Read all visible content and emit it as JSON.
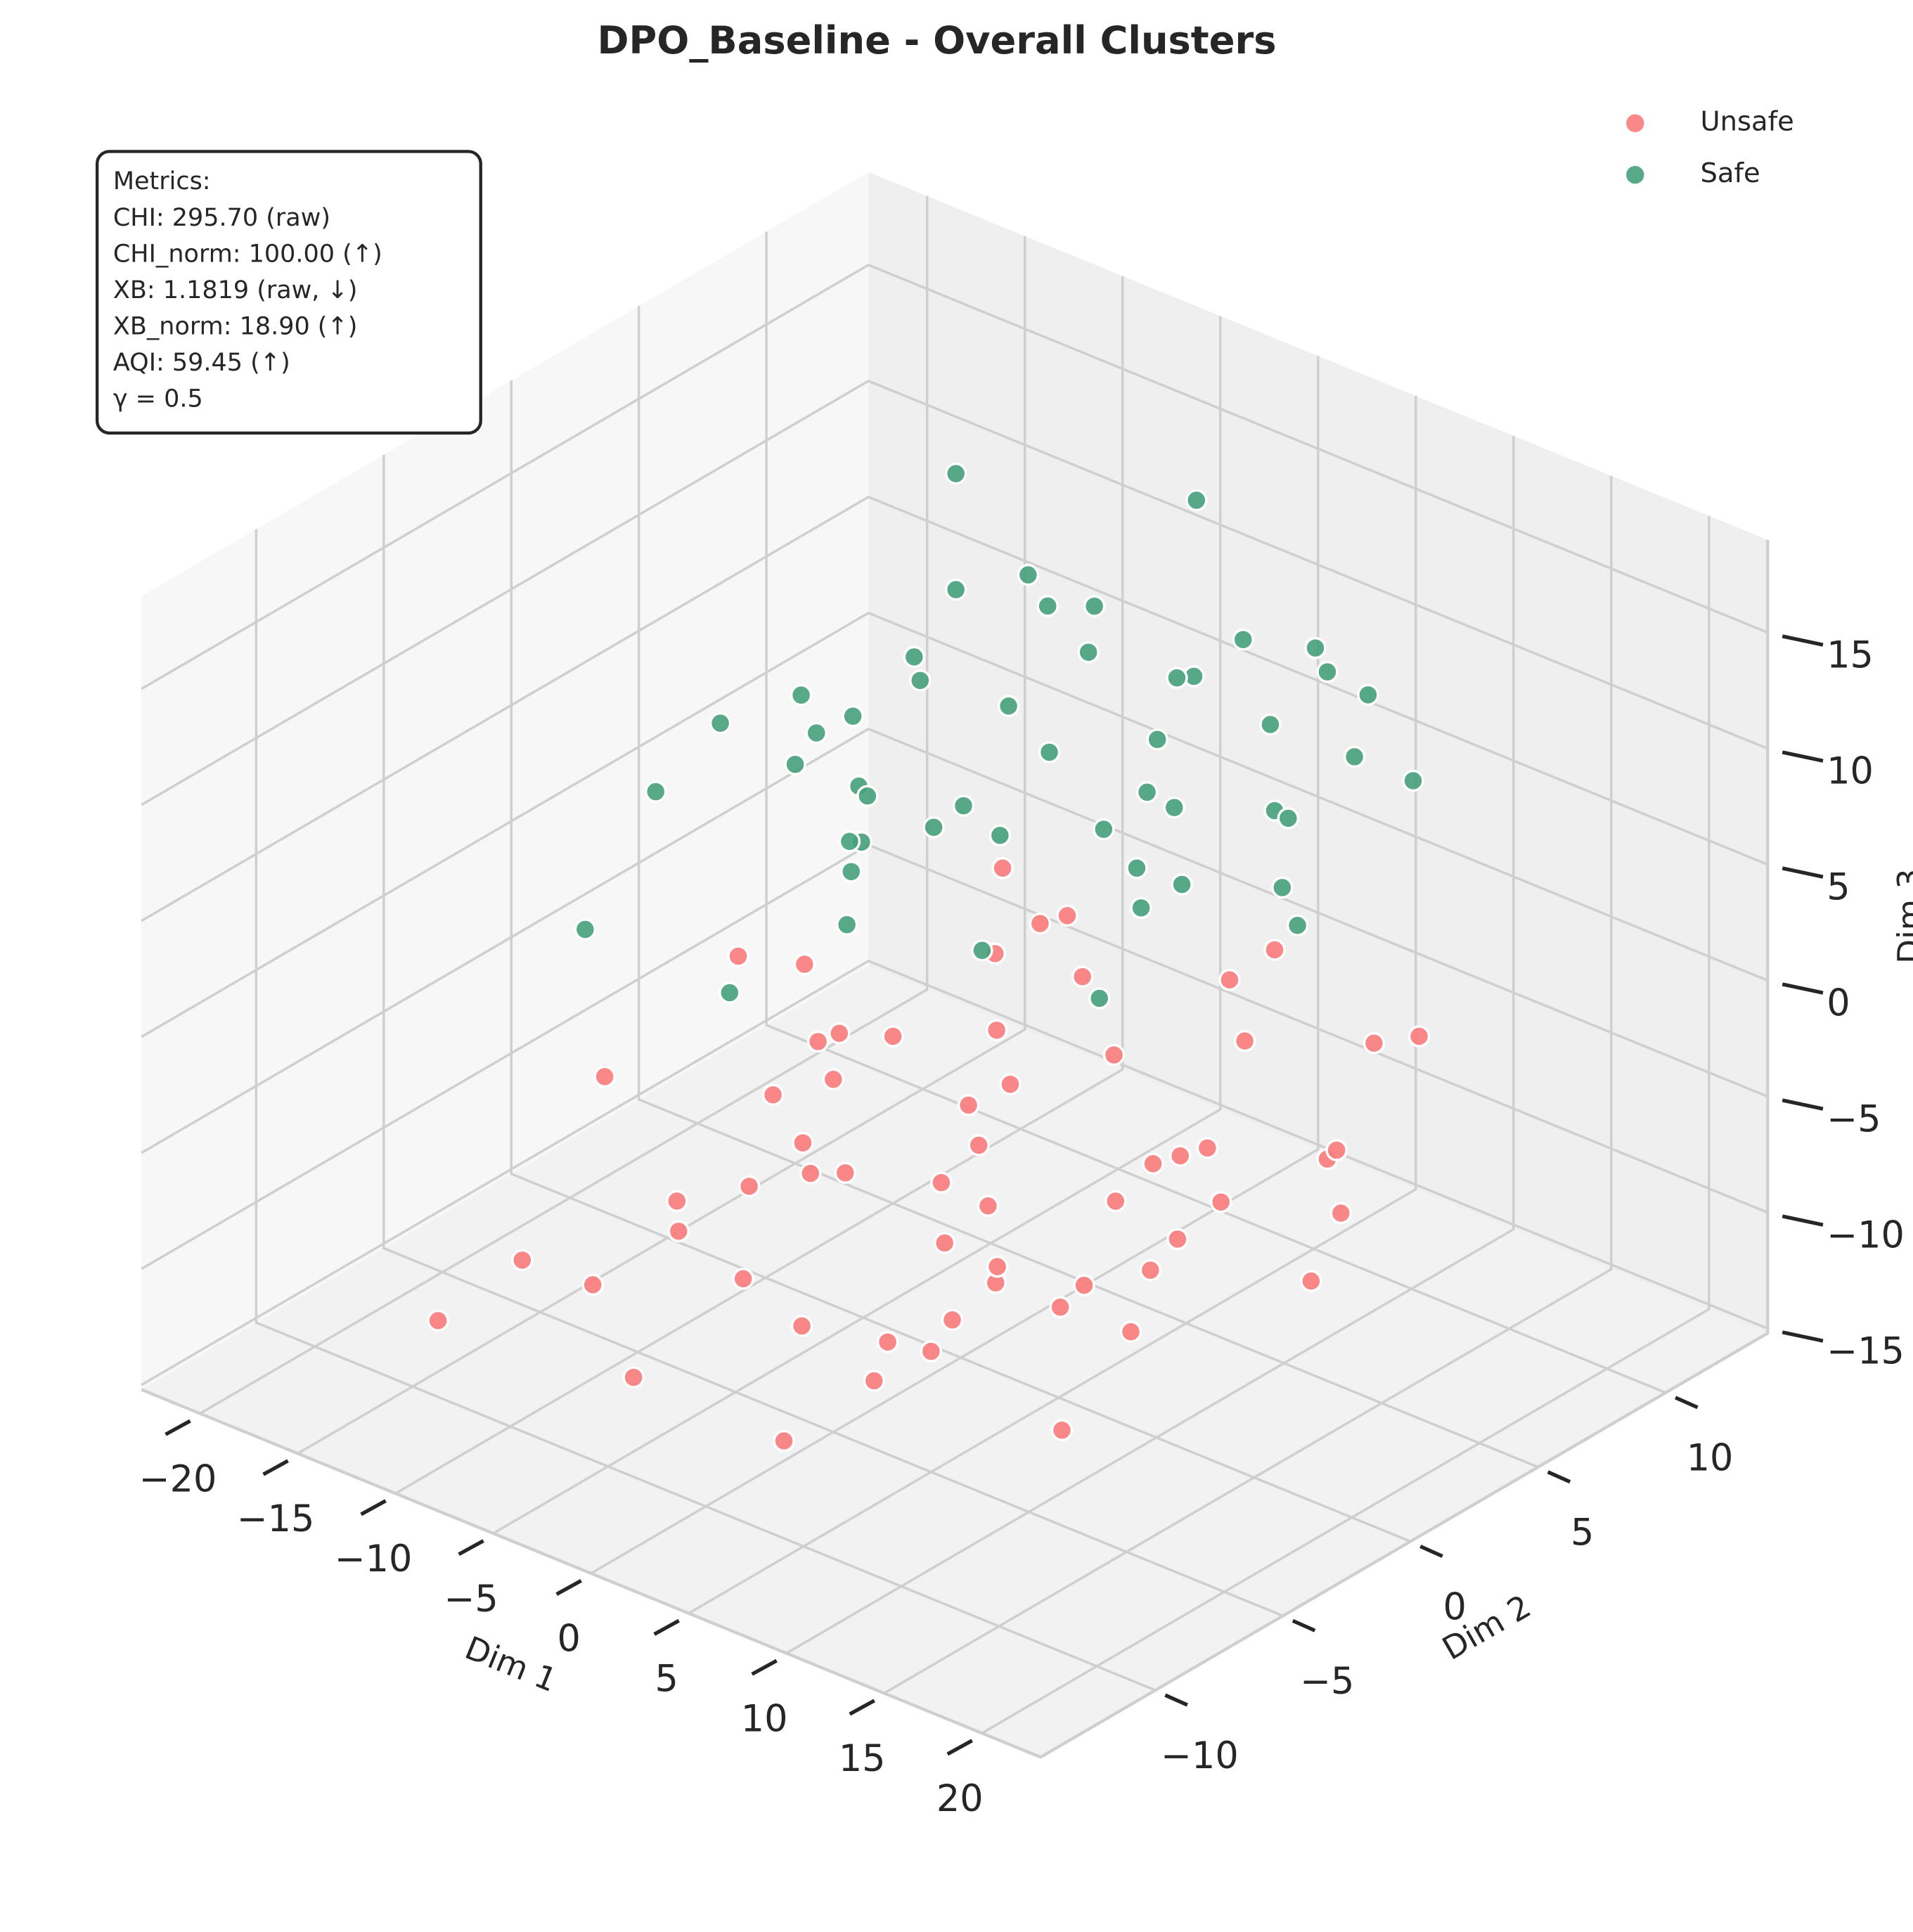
{
  "chart_data": {
    "type": "scatter3d",
    "title": "DPO_Baseline - Overall Clusters",
    "xlabel": "Dim 1",
    "ylabel": "Dim 2",
    "zlabel": "Dim 3",
    "xlim": [
      -23,
      23
    ],
    "ylim": [
      -14.5,
      14
    ],
    "zlim": [
      -15.2,
      19
    ],
    "xticks": [
      {
        "value": -20,
        "label": "−20"
      },
      {
        "value": -15,
        "label": "−15"
      },
      {
        "value": -10,
        "label": "−10"
      },
      {
        "value": -5,
        "label": "−5"
      },
      0,
      5,
      10,
      15,
      20
    ],
    "yticks": [
      {
        "value": -10,
        "label": "−10"
      },
      {
        "value": -5,
        "label": "−5"
      },
      0,
      5,
      10
    ],
    "zticks": [
      {
        "value": -15,
        "label": "−15"
      },
      {
        "value": -10,
        "label": "−10"
      },
      {
        "value": -5,
        "label": "−5"
      },
      0,
      5,
      10,
      15
    ],
    "grid": true,
    "legend": "upper right",
    "annotation": [
      "Metrics:",
      "CHI: 295.70 (raw)",
      "CHI_norm: 100.00 (↑)",
      "XB: 1.1819 (raw, ↓)",
      "XB_norm: 18.90 (↑)",
      "AQI: 59.45 (↑)",
      "γ = 0.5"
    ],
    "series": [
      {
        "name": "Unsafe",
        "color": "#fb7b7b",
        "x": [
          -12,
          -8,
          -5,
          -2,
          1,
          4,
          7,
          10,
          13,
          -14,
          -10,
          -6,
          -3,
          0,
          3,
          6,
          9,
          12,
          15,
          -11,
          -7,
          -4,
          -1,
          2,
          5,
          8,
          11,
          14,
          -13,
          -9,
          -5,
          -2,
          1,
          4,
          7,
          10,
          -15,
          -6,
          0,
          6,
          12,
          -12,
          -3,
          3,
          9,
          -8,
          2,
          8,
          14,
          -10,
          -1,
          5,
          11,
          -7,
          4,
          13,
          -4,
          7,
          -9,
          10
        ],
        "y": [
          -8,
          -5,
          -9,
          -3,
          -7,
          -10,
          -4,
          -8,
          -6,
          2,
          5,
          -1,
          3,
          6,
          -2,
          4,
          8,
          1,
          -3,
          -6,
          7,
          -8,
          0,
          9,
          -5,
          5,
          -1,
          3,
          -4,
          1,
          8,
          -7,
          4,
          -2,
          9,
          2,
          -9,
          6,
          -5,
          -8,
          7,
          3,
          -6,
          10,
          -3,
          0,
          6,
          -9,
          4,
          9,
          -4,
          1,
          -7,
          -2,
          3,
          8,
          5,
          -6,
          10,
          -1
        ],
        "z": [
          -10,
          -8,
          -12,
          -6,
          -9,
          -11,
          -7,
          -5,
          -10,
          -4,
          -8,
          -3,
          -9,
          -6,
          -2,
          -7,
          -11,
          -5,
          -3,
          -12,
          -1,
          -6,
          -8,
          -4,
          -10,
          -2,
          -7,
          -9,
          -5,
          -11,
          -3,
          -8,
          -1,
          -6,
          -10,
          -4,
          -13,
          -7,
          0,
          -9,
          -2,
          -12,
          -5,
          -3,
          -8,
          -1,
          -10,
          -6,
          -4,
          -7,
          1,
          -11,
          -3,
          -5,
          -9,
          -2,
          -8,
          -4,
          -6,
          -10
        ]
      },
      {
        "name": "Safe",
        "color": "#46a07a",
        "x": [
          -16,
          -12,
          -9,
          -6,
          -3,
          0,
          3,
          6,
          9,
          12,
          -14,
          -10,
          -7,
          -4,
          -1,
          2,
          5,
          8,
          11,
          14,
          -15,
          -11,
          -8,
          -5,
          -2,
          1,
          4,
          7,
          10,
          13,
          -13,
          -9,
          -6,
          -3,
          0,
          3,
          6,
          9,
          -12,
          -4,
          2,
          8,
          -10,
          -1,
          5,
          11,
          -7,
          4,
          -2,
          7
        ],
        "y": [
          6,
          9,
          3,
          8,
          -2,
          5,
          10,
          1,
          7,
          4,
          -4,
          2,
          8,
          -6,
          6,
          0,
          9,
          3,
          -3,
          7,
          5,
          -1,
          8,
          2,
          10,
          -5,
          4,
          9,
          1,
          6,
          -2,
          7,
          3,
          10,
          -4,
          5,
          8,
          0,
          9,
          2,
          -6,
          6,
          4,
          10,
          -3,
          7,
          1,
          8,
          5,
          3
        ],
        "z": [
          4,
          8,
          2,
          10,
          6,
          12,
          3,
          9,
          14,
          5,
          1,
          7,
          11,
          3,
          13,
          8,
          4,
          15,
          6,
          10,
          2,
          9,
          5,
          12,
          7,
          16,
          3,
          11,
          8,
          14,
          6,
          1,
          10,
          4,
          12,
          7,
          2,
          9,
          13,
          5,
          8,
          11,
          3,
          15,
          6,
          10,
          4,
          12,
          7,
          9
        ]
      }
    ]
  }
}
